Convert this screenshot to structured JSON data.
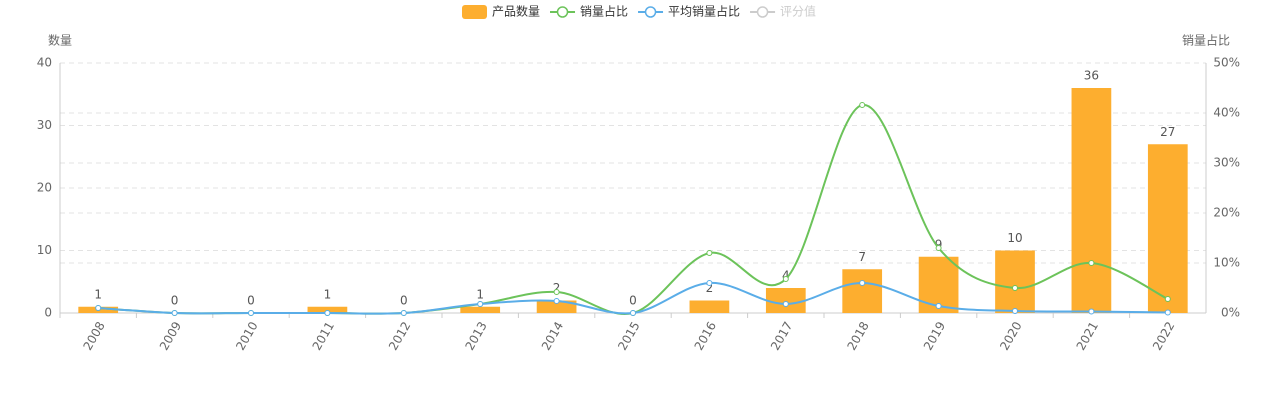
{
  "chart_data": {
    "type": "bar-line",
    "y_axis_label": "数量",
    "y2_axis_label": "销量占比",
    "categories": [
      "2008",
      "2009",
      "2010",
      "2011",
      "2012",
      "2013",
      "2014",
      "2015",
      "2016",
      "2017",
      "2018",
      "2019",
      "2020",
      "2021",
      "2022"
    ],
    "series": [
      {
        "name": "产品数量",
        "type": "bar",
        "color": "#fdae2f",
        "values": [
          1,
          0,
          0,
          1,
          0,
          1,
          2,
          0,
          2,
          4,
          7,
          9,
          10,
          36,
          27
        ]
      },
      {
        "name": "销量占比",
        "type": "line",
        "axis": "y2",
        "color": "#6cc35a",
        "values": [
          1,
          0,
          0,
          0,
          0,
          1.8,
          4.2,
          0,
          12,
          6.8,
          41.6,
          13,
          5,
          10,
          2.8
        ]
      },
      {
        "name": "平均销量占比",
        "type": "line",
        "axis": "y2",
        "color": "#5aade8",
        "values": [
          1,
          0,
          0,
          0,
          0,
          1.8,
          2.4,
          0,
          6,
          1.8,
          6,
          1.4,
          0.4,
          0.3,
          0.1
        ]
      },
      {
        "name": "评分值",
        "type": "line",
        "axis": "y2",
        "color": "#cccccc",
        "hidden": true,
        "values": [
          null,
          null,
          null,
          null,
          null,
          null,
          null,
          null,
          null,
          null,
          null,
          null,
          null,
          null,
          null
        ]
      }
    ],
    "ylim": [
      0,
      40
    ],
    "yticks": [
      0,
      10,
      20,
      30,
      40
    ],
    "y2lim": [
      0,
      50
    ],
    "y2ticks": [
      {
        "value": 0,
        "label": "0%"
      },
      {
        "value": 10,
        "label": "10%"
      },
      {
        "value": 20,
        "label": "20%"
      },
      {
        "value": 30,
        "label": "30%"
      },
      {
        "value": 40,
        "label": "40%"
      },
      {
        "value": 50,
        "label": "50%"
      }
    ],
    "grid": true,
    "legend": "top"
  }
}
